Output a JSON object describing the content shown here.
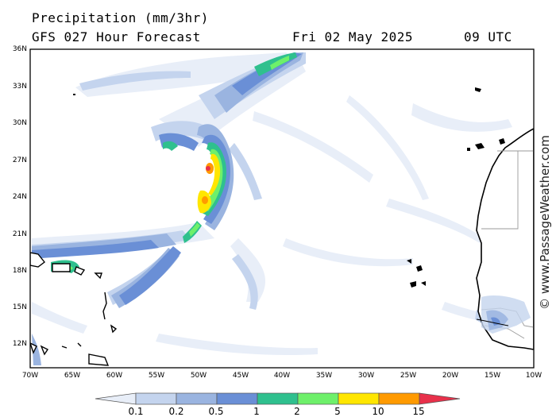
{
  "header": {
    "title": "Precipitation (mm/3hr)",
    "subtitle": "GFS 027 Hour Forecast",
    "date": "Fri 02 May 2025",
    "time": "09 UTC"
  },
  "axes": {
    "lat_labels": [
      "36N",
      "33N",
      "30N",
      "27N",
      "24N",
      "21N",
      "18N",
      "15N",
      "12N"
    ],
    "lon_labels": [
      "70W",
      "65W",
      "60W",
      "55W",
      "50W",
      "45W",
      "40W",
      "35W",
      "30W",
      "25W",
      "20W",
      "15W",
      "10W"
    ]
  },
  "colorbar": {
    "labels": [
      "0.1",
      "0.2",
      "0.5",
      "1",
      "2",
      "5",
      "10",
      "15"
    ],
    "colors": [
      "#e8eef8",
      "#c4d4ee",
      "#9ab4e0",
      "#6a8fd6",
      "#2fc08e",
      "#6ef06a",
      "#ffe600",
      "#ff9a00",
      "#e8304a"
    ]
  },
  "watermark": "© www.PassageWeather.com",
  "colors": {
    "land": "#ffffff",
    "coast": "#000000",
    "border": "#9a9a9a"
  }
}
